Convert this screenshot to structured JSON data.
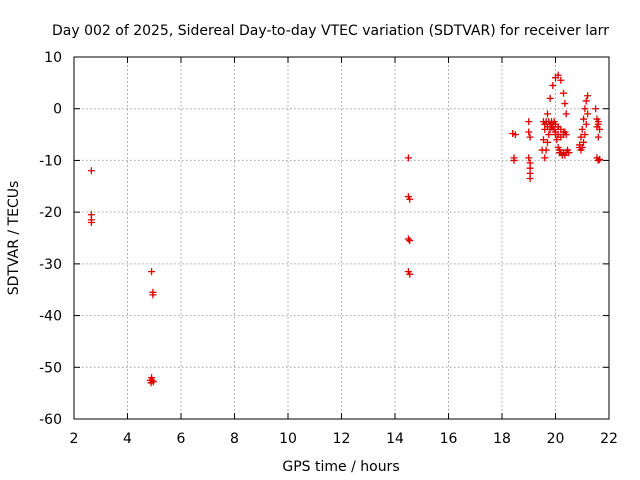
{
  "chart_data": {
    "type": "scatter",
    "title": "Day 002 of 2025, Sidereal Day-to-day VTEC variation (SDTVAR) for receiver larr",
    "xlabel": "GPS time / hours",
    "ylabel": "SDTVAR / TECUs",
    "xlim": [
      2,
      22
    ],
    "ylim": [
      -60,
      10
    ],
    "xticks": [
      2,
      4,
      6,
      8,
      10,
      12,
      14,
      16,
      18,
      20,
      22
    ],
    "yticks": [
      -60,
      -50,
      -40,
      -30,
      -20,
      -10,
      0,
      10
    ],
    "grid": true,
    "marker": "+",
    "color": "#e00000",
    "series": [
      {
        "name": "SDTVAR",
        "x": [
          2.65,
          2.65,
          2.65,
          2.65,
          4.9,
          4.95,
          4.95,
          4.9,
          4.85,
          4.88,
          4.92,
          4.97,
          14.5,
          14.5,
          14.55,
          14.5,
          14.55,
          14.5,
          14.55,
          18.4,
          18.45,
          18.45,
          18.5,
          19.0,
          19.0,
          19.05,
          19.0,
          19.05,
          19.05,
          19.05,
          19.05,
          19.5,
          19.55,
          19.6,
          19.7,
          19.8,
          19.9,
          20.0,
          20.1,
          20.2,
          20.3,
          20.35,
          20.4,
          19.55,
          19.6,
          19.65,
          19.7,
          19.75,
          19.8,
          19.85,
          19.9,
          19.95,
          20.0,
          20.1,
          20.2,
          20.3,
          20.4,
          20.15,
          20.2,
          20.25,
          20.3,
          20.35,
          20.4,
          20.45,
          20.5,
          19.6,
          19.65,
          19.7,
          19.75,
          19.8,
          19.85,
          19.9,
          19.95,
          20.0,
          20.05,
          20.1,
          20.15,
          20.0,
          20.1,
          20.2,
          20.3,
          20.35,
          20.9,
          20.95,
          21.0,
          21.05,
          21.1,
          21.15,
          21.2,
          21.2,
          21.15,
          21.1,
          21.05,
          21.0,
          20.95,
          20.9,
          21.5,
          21.55,
          21.6,
          21.65,
          21.6,
          21.55,
          21.6,
          21.65,
          21.6,
          21.55
        ],
        "y": [
          -12,
          -20.5,
          -21.5,
          -22,
          -31.5,
          -35.5,
          -36,
          -52,
          -52.5,
          -53,
          -52.5,
          -52.8,
          -9.5,
          -17,
          -17.5,
          -25.2,
          -25.5,
          -31.5,
          -32,
          -4.8,
          -9.5,
          -10,
          -5,
          -2.5,
          -4.5,
          -5.5,
          -9.5,
          -10.5,
          -11.5,
          -12.5,
          -13.5,
          -8,
          -6,
          -4,
          -1,
          2,
          4.5,
          6,
          6.5,
          5.5,
          3,
          1,
          -1,
          -2.5,
          -3,
          -2.5,
          -3.5,
          -2.5,
          -3,
          -2.5,
          -3.5,
          -2.5,
          -3,
          -3.5,
          -4,
          -4.5,
          -5,
          -8,
          -8.5,
          -9,
          -8.5,
          -9,
          -8.5,
          -8,
          -8.5,
          -9.5,
          -8,
          -6.5,
          -5,
          -4,
          -3.5,
          -3,
          -4,
          -5,
          -6,
          -7.5,
          -8.5,
          -4.5,
          -5,
          -5.5,
          -5,
          -4.5,
          -7,
          -5.5,
          -4,
          -2,
          0,
          1.5,
          2.5,
          -1,
          -3,
          -5,
          -6.5,
          -7.5,
          -8,
          -7.5,
          0,
          -2,
          -3,
          -4,
          -5.5,
          -9.5,
          -10,
          -9.8,
          -2.5,
          -3.5
        ]
      }
    ]
  }
}
